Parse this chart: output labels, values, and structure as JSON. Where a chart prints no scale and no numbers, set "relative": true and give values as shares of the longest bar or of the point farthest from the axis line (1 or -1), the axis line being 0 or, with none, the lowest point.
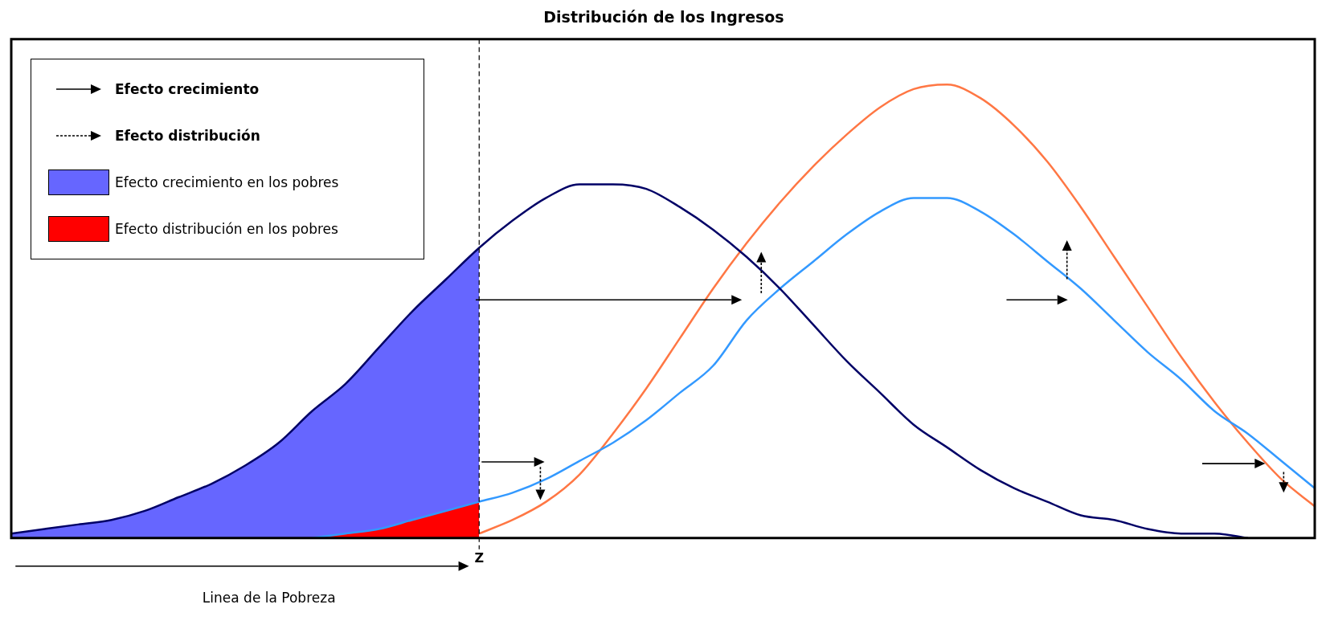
{
  "chart_data": {
    "type": "line",
    "title": "Distribución de los Ingresos",
    "relative": true,
    "legend": "top left",
    "categories": [
      null,
      null,
      null,
      null,
      null,
      null,
      null,
      null,
      null,
      null,
      null,
      null,
      null,
      null,
      null,
      null,
      null,
      null,
      null,
      null,
      null,
      null,
      null,
      null,
      null,
      null,
      null,
      null,
      null,
      null,
      null,
      null,
      null,
      null,
      null,
      null,
      null,
      null,
      null,
      null
    ],
    "series": [
      {
        "type": "area",
        "name": "Efecto crecimiento en los pobres",
        "color": "#6666ff",
        "values": [
          0.01,
          0.02,
          0.03,
          0.04,
          0.06,
          0.09,
          0.12,
          0.16,
          0.21,
          0.28,
          0.34,
          0.42,
          0.5,
          0.57,
          0.64,
          null,
          null,
          null,
          null,
          null,
          null,
          null,
          null,
          null,
          null,
          null,
          null,
          null,
          null,
          null,
          null,
          null,
          null,
          null,
          null,
          null,
          null,
          null,
          null,
          null
        ]
      },
      {
        "type": "area",
        "name": "Efecto distribución en los pobres",
        "color": "#ff0000",
        "values": [
          null,
          null,
          null,
          null,
          null,
          null,
          null,
          null,
          null,
          0,
          0.01,
          0.02,
          0.04,
          0.06,
          0.08,
          null,
          null,
          null,
          null,
          null,
          null,
          null,
          null,
          null,
          null,
          null,
          null,
          null,
          null,
          null,
          null,
          null,
          null,
          null,
          null,
          null,
          null,
          null,
          null,
          null
        ]
      },
      {
        "type": "line",
        "color": "#000066",
        "values": [
          0.01,
          0.02,
          0.03,
          0.04,
          0.06,
          0.09,
          0.12,
          0.16,
          0.21,
          0.28,
          0.34,
          0.42,
          0.5,
          0.57,
          0.64,
          0.7,
          0.75,
          0.78,
          0.78,
          0.77,
          0.73,
          0.68,
          0.62,
          0.55,
          0.47,
          0.39,
          0.32,
          0.25,
          0.2,
          0.15,
          0.11,
          0.08,
          0.05,
          0.04,
          0.02,
          0.01,
          0.01,
          0,
          null,
          null
        ]
      },
      {
        "type": "line",
        "color": "#3399ff",
        "values": [
          null,
          null,
          null,
          null,
          null,
          null,
          null,
          null,
          null,
          0,
          0.01,
          0.02,
          0.04,
          0.06,
          0.08,
          0.1,
          0.13,
          0.17,
          0.21,
          0.26,
          0.32,
          0.38,
          0.48,
          0.55,
          0.61,
          0.67,
          0.72,
          0.75,
          0.75,
          0.72,
          0.67,
          0.61,
          0.55,
          0.48,
          0.41,
          0.35,
          0.28,
          0.23,
          0.17,
          0.11
        ]
      },
      {
        "type": "line",
        "color": "#ff7744",
        "values": [
          null,
          null,
          null,
          null,
          null,
          null,
          null,
          null,
          null,
          null,
          null,
          null,
          null,
          null,
          0.01,
          0.04,
          0.08,
          0.14,
          0.23,
          0.33,
          0.44,
          0.55,
          0.65,
          0.74,
          0.82,
          0.89,
          0.95,
          0.99,
          1,
          0.97,
          0.91,
          0.83,
          0.73,
          0.62,
          0.51,
          0.4,
          0.3,
          0.21,
          0.13,
          0.07
        ]
      }
    ],
    "ref_lines": [
      {
        "axis": "x",
        "label": "Z",
        "color": "#000000",
        "line_style": "dashed"
      }
    ],
    "annotations": [
      "Efecto crecimiento",
      "Efecto distribución",
      "Linea de la Pobreza"
    ]
  }
}
